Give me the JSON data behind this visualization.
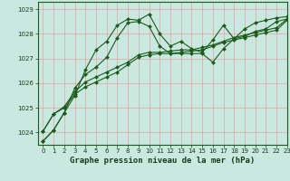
{
  "xlabel": "Graphe pression niveau de la mer (hPa)",
  "xlim": [
    -0.5,
    23
  ],
  "ylim": [
    1023.5,
    1029.3
  ],
  "yticks": [
    1024,
    1025,
    1026,
    1027,
    1028,
    1029
  ],
  "xticks": [
    0,
    1,
    2,
    3,
    4,
    5,
    6,
    7,
    8,
    9,
    10,
    11,
    12,
    13,
    14,
    15,
    16,
    17,
    18,
    19,
    20,
    21,
    22,
    23
  ],
  "background_color": "#c8e8e0",
  "grid_color": "#e8a0a0",
  "line_color": "#1a5c1a",
  "marker_color": "#1a5c1a",
  "series": [
    [
      1023.65,
      1024.1,
      1024.8,
      1025.8,
      1026.35,
      1026.65,
      1027.05,
      1027.85,
      1028.45,
      1028.5,
      1028.3,
      1027.5,
      1027.2,
      1027.2,
      1027.2,
      1027.2,
      1026.85,
      1027.4,
      1027.8,
      1027.9,
      1028.1,
      1028.2,
      1028.5,
      1028.6
    ],
    [
      1024.05,
      1024.75,
      1025.0,
      1025.55,
      1025.85,
      1026.05,
      1026.25,
      1026.45,
      1026.75,
      1027.05,
      1027.15,
      1027.2,
      1027.2,
      1027.25,
      1027.3,
      1027.35,
      1027.5,
      1027.65,
      1027.75,
      1027.85,
      1027.95,
      1028.05,
      1028.15,
      1028.55
    ],
    [
      1024.05,
      1024.75,
      1025.05,
      1025.65,
      1026.05,
      1026.25,
      1026.45,
      1026.65,
      1026.85,
      1027.15,
      1027.25,
      1027.25,
      1027.3,
      1027.35,
      1027.35,
      1027.45,
      1027.55,
      1027.7,
      1027.85,
      1027.95,
      1028.05,
      1028.15,
      1028.25,
      1028.6
    ],
    [
      1023.65,
      1024.1,
      1024.8,
      1025.5,
      1026.55,
      1027.35,
      1027.7,
      1028.35,
      1028.6,
      1028.55,
      1028.8,
      1028.0,
      1027.5,
      1027.7,
      1027.4,
      1027.25,
      1027.75,
      1028.35,
      1027.8,
      1028.2,
      1028.45,
      1028.55,
      1028.65,
      1028.7
    ]
  ],
  "marker": "D",
  "markersize": 2.0,
  "linewidth": 0.8,
  "tick_fontsize": 5.0,
  "label_fontsize": 6.5,
  "spine_color": "#1a5c1a",
  "tick_color": "#1a3a1a",
  "label_color": "#1a3a1a"
}
